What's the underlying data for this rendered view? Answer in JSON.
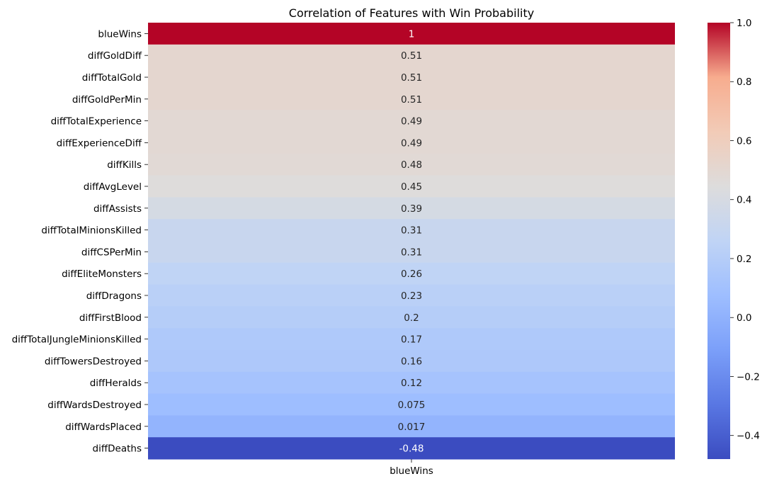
{
  "chart_data": {
    "type": "heatmap",
    "title": "Correlation of Features with Win Probability",
    "columns": [
      "blueWins"
    ],
    "rows": [
      "blueWins",
      "diffGoldDiff",
      "diffTotalGold",
      "diffGoldPerMin",
      "diffTotalExperience",
      "diffExperienceDiff",
      "diffKills",
      "diffAvgLevel",
      "diffAssists",
      "diffTotalMinionsKilled",
      "diffCSPerMin",
      "diffEliteMonsters",
      "diffDragons",
      "diffFirstBlood",
      "diffTotalJungleMinionsKilled",
      "diffTowersDestroyed",
      "diffHeralds",
      "diffWardsDestroyed",
      "diffWardsPlaced",
      "diffDeaths"
    ],
    "values": [
      1,
      0.51,
      0.51,
      0.51,
      0.49,
      0.49,
      0.48,
      0.45,
      0.39,
      0.31,
      0.31,
      0.26,
      0.23,
      0.2,
      0.17,
      0.16,
      0.12,
      0.075,
      0.017,
      -0.48
    ],
    "annotations": [
      "1",
      "0.51",
      "0.51",
      "0.51",
      "0.49",
      "0.49",
      "0.48",
      "0.45",
      "0.39",
      "0.31",
      "0.31",
      "0.26",
      "0.23",
      "0.2",
      "0.17",
      "0.16",
      "0.12",
      "0.075",
      "0.017",
      "-0.48"
    ],
    "colorscale": "coolwarm",
    "colorbar": {
      "range": [
        -0.48,
        1.0
      ],
      "ticks": [
        -0.4,
        -0.2,
        0.0,
        0.2,
        0.4,
        0.6,
        0.8,
        1.0
      ],
      "tick_labels": [
        "−0.4",
        "−0.2",
        "0.0",
        "0.2",
        "0.4",
        "0.6",
        "0.8",
        "1.0"
      ]
    },
    "legend": "colorbar-right"
  }
}
